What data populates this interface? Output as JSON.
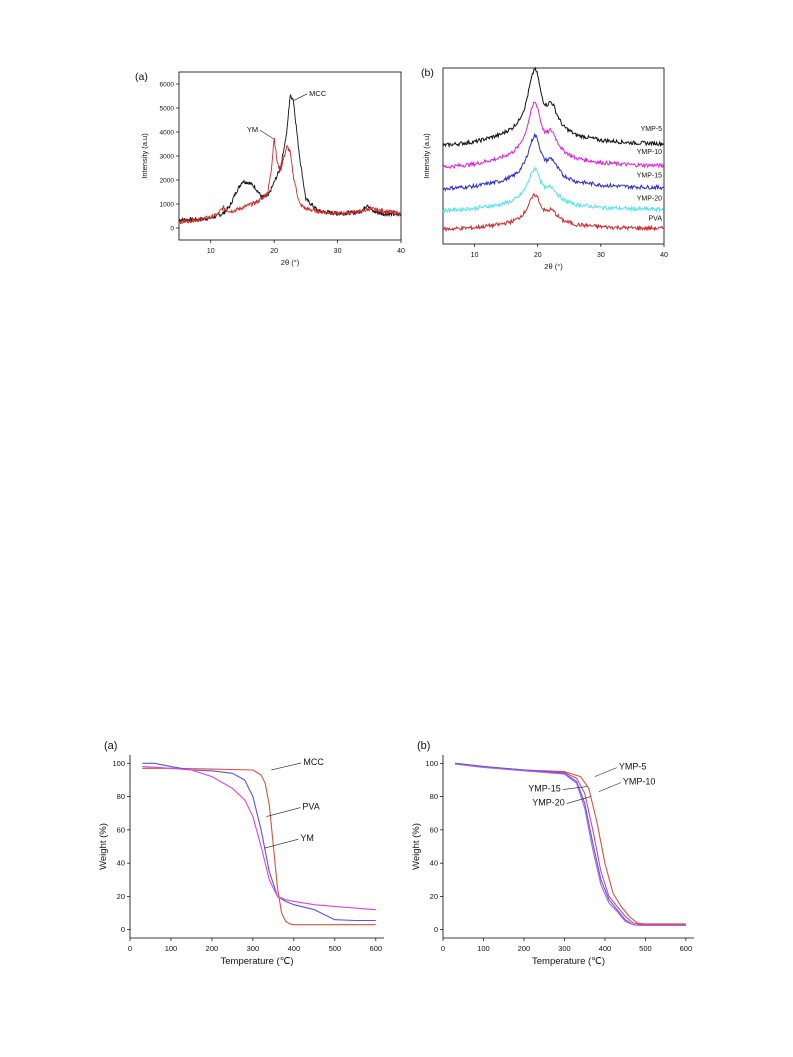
{
  "page": {
    "background": "#ffffff"
  },
  "chart_data": [
    {
      "id": "xrd-a",
      "type": "line",
      "panel_label": "(a)",
      "xlabel": "2θ (°)",
      "ylabel": "Intensity (a.u)",
      "xlim": [
        5,
        40
      ],
      "ylim": [
        -500,
        6500
      ],
      "xticks": [
        10,
        20,
        30,
        40
      ],
      "yticks": [
        0,
        1000,
        2000,
        3000,
        4000,
        5000,
        6000
      ],
      "legend": "none",
      "series": [
        {
          "name": "MCC",
          "color": "#111111",
          "x": [
            5,
            8,
            10,
            11,
            12,
            13,
            14,
            15,
            16,
            17,
            18,
            19,
            20,
            21,
            22,
            22.5,
            23,
            24,
            25,
            27,
            30,
            33,
            34,
            34.7,
            35.5,
            37,
            40
          ],
          "y": [
            350,
            350,
            420,
            500,
            620,
            900,
            1500,
            1950,
            1900,
            1700,
            1300,
            1300,
            1900,
            2500,
            4000,
            5500,
            5400,
            3000,
            1200,
            700,
            600,
            650,
            750,
            1000,
            700,
            600,
            550
          ]
        },
        {
          "name": "YM",
          "color": "#d62828",
          "x": [
            5,
            8,
            10,
            11,
            12,
            13,
            14,
            15,
            16,
            17,
            18,
            19,
            19.5,
            20,
            20.5,
            21,
            21.5,
            22,
            22.5,
            23,
            24,
            25,
            27,
            30,
            34,
            35,
            40
          ],
          "y": [
            250,
            350,
            450,
            550,
            850,
            700,
            750,
            850,
            950,
            1050,
            1200,
            1500,
            2300,
            3800,
            2700,
            2400,
            2900,
            3400,
            3200,
            2200,
            1000,
            800,
            700,
            600,
            700,
            800,
            600
          ]
        }
      ],
      "annotations": [
        {
          "text": "MCC",
          "at_x": 23.0,
          "at_y": 5300
        },
        {
          "text": "YM",
          "at_x": 20.0,
          "at_y": 3700
        }
      ]
    },
    {
      "id": "xrd-b",
      "type": "line",
      "panel_label": "(b)",
      "xlabel": "2θ (°)",
      "ylabel": "Intensity (a.u)",
      "xlim": [
        5,
        40
      ],
      "ylim": [
        0,
        10
      ],
      "xticks": [
        10,
        20,
        30,
        40
      ],
      "legend": "inline-right",
      "series": [
        {
          "name": "YMP-5",
          "color": "#111111",
          "baseline": 5.4,
          "scale": 1.0
        },
        {
          "name": "YMP-10",
          "color": "#dd22dd",
          "baseline": 4.2,
          "scale": 0.85
        },
        {
          "name": "YMP-15",
          "color": "#2b2bd6",
          "baseline": 3.0,
          "scale": 0.7
        },
        {
          "name": "YMP-20",
          "color": "#55e0f0",
          "baseline": 1.8,
          "scale": 0.55
        },
        {
          "name": "PVA",
          "color": "#cc2b2b",
          "baseline": 0.75,
          "scale": 0.45
        }
      ],
      "x": [
        5,
        10,
        14,
        16,
        17,
        18,
        18.5,
        19,
        19.5,
        20,
        20.5,
        21,
        21.5,
        22,
        22.5,
        23,
        24,
        26,
        30,
        35,
        40
      ],
      "profile": [
        0.2,
        0.4,
        0.8,
        1.2,
        1.6,
        2.4,
        3.2,
        4.0,
        4.6,
        4.2,
        3.2,
        2.6,
        2.5,
        2.7,
        2.5,
        2.0,
        1.3,
        0.8,
        0.5,
        0.35,
        0.3
      ]
    },
    {
      "id": "tga-a",
      "type": "line",
      "panel_label": "(a)",
      "xlabel": "Temperature (℃)",
      "ylabel": "Weight (%)",
      "xlim": [
        0,
        620
      ],
      "ylim": [
        -5,
        105
      ],
      "xticks": [
        0,
        100,
        200,
        300,
        400,
        500,
        600
      ],
      "yticks": [
        0,
        20,
        40,
        60,
        80,
        100
      ],
      "legend": "none",
      "series": [
        {
          "name": "MCC",
          "color": "#d9533b",
          "x": [
            30,
            100,
            200,
            300,
            320,
            330,
            340,
            350,
            360,
            370,
            380,
            390,
            400,
            450,
            500,
            600
          ],
          "y": [
            97,
            97,
            96.5,
            96,
            93,
            88,
            75,
            50,
            25,
            10,
            5,
            3.5,
            3,
            3,
            3,
            3
          ]
        },
        {
          "name": "PVA",
          "color": "#5555ee",
          "x": [
            30,
            60,
            100,
            150,
            200,
            250,
            280,
            300,
            320,
            340,
            360,
            380,
            400,
            450,
            500,
            550,
            600
          ],
          "y": [
            100,
            100,
            98,
            96,
            95.5,
            94,
            90,
            80,
            60,
            35,
            20,
            17,
            15,
            12,
            6,
            5.5,
            5.5
          ]
        },
        {
          "name": "YM",
          "color": "#dd44dd",
          "x": [
            30,
            100,
            150,
            200,
            250,
            280,
            300,
            320,
            340,
            360,
            380,
            400,
            450,
            500,
            550,
            600
          ],
          "y": [
            98,
            97,
            96,
            92,
            85,
            78,
            68,
            50,
            30,
            20,
            18,
            17,
            15,
            14,
            13,
            12
          ]
        }
      ],
      "annotations": [
        {
          "text": "MCC",
          "at_x": 345,
          "at_y": 96
        },
        {
          "text": "PVA",
          "at_x": 333,
          "at_y": 68
        },
        {
          "text": "YM",
          "at_x": 328,
          "at_y": 49
        }
      ]
    },
    {
      "id": "tga-b",
      "type": "line",
      "panel_label": "(b)",
      "xlabel": "Temperature (℃)",
      "ylabel": "Weight (%)",
      "xlim": [
        0,
        620
      ],
      "ylim": [
        -5,
        105
      ],
      "xticks": [
        0,
        100,
        200,
        300,
        400,
        500,
        600
      ],
      "yticks": [
        0,
        20,
        40,
        60,
        80,
        100
      ],
      "legend": "none",
      "series": [
        {
          "name": "YMP-5",
          "color": "#d9533b",
          "x": [
            30,
            100,
            200,
            300,
            340,
            360,
            380,
            400,
            420,
            440,
            460,
            480,
            500,
            600
          ],
          "y": [
            100,
            98,
            96,
            95,
            92,
            85,
            65,
            40,
            22,
            14,
            8,
            4,
            3.5,
            3.5
          ]
        },
        {
          "name": "YMP-10",
          "color": "#c64a96",
          "x": [
            30,
            100,
            200,
            300,
            330,
            350,
            370,
            390,
            410,
            430,
            450,
            470,
            490,
            600
          ],
          "y": [
            100,
            98,
            96,
            94.5,
            91,
            82,
            60,
            35,
            20,
            14,
            8,
            4,
            3,
            3
          ]
        },
        {
          "name": "YMP-15",
          "color": "#5555ee",
          "x": [
            30,
            100,
            200,
            300,
            330,
            350,
            370,
            390,
            410,
            430,
            450,
            470,
            490,
            600
          ],
          "y": [
            100,
            98,
            96,
            94,
            89,
            76,
            52,
            30,
            18,
            12,
            6,
            3,
            2.5,
            2.5
          ]
        },
        {
          "name": "YMP-20",
          "color": "#aa66dd",
          "x": [
            30,
            100,
            200,
            300,
            330,
            350,
            370,
            390,
            410,
            430,
            450,
            470,
            490,
            600
          ],
          "y": [
            99.5,
            97.5,
            95.5,
            93.5,
            88,
            73,
            48,
            27,
            16,
            11,
            5,
            3,
            2.5,
            2.5
          ]
        }
      ],
      "annotations": [
        {
          "text": "YMP-5",
          "at_x": 375,
          "at_y": 92
        },
        {
          "text": "YMP-10",
          "at_x": 385,
          "at_y": 83
        },
        {
          "text": "YMP-15",
          "at_x": 355,
          "at_y": 86
        },
        {
          "text": "YMP-20",
          "at_x": 365,
          "at_y": 80
        }
      ]
    }
  ]
}
